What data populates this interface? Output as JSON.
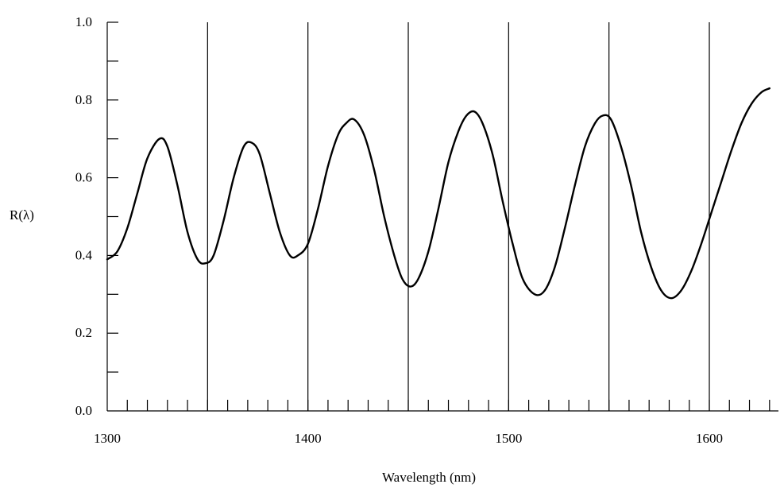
{
  "chart_data": {
    "type": "line",
    "xlabel": "Wavelength (nm)",
    "ylabel": "R(λ)",
    "xlim": [
      1300,
      1635
    ],
    "ylim": [
      0.0,
      1.0
    ],
    "x_ticks": [
      1300,
      1400,
      1500,
      1600
    ],
    "x_tick_labels": [
      "1300",
      "1400",
      "1500",
      "1600"
    ],
    "y_ticks": [
      0.0,
      0.2,
      0.4,
      0.6,
      0.8,
      1.0
    ],
    "y_tick_labels": [
      "0.0",
      "0.2",
      "0.4",
      "0.6",
      "0.8",
      "1.0"
    ],
    "vertical_lines_x": [
      1350,
      1400,
      1450,
      1500,
      1550,
      1600
    ],
    "grid": false,
    "series": [
      {
        "x": [
          1300,
          1305,
          1310,
          1315,
          1320,
          1326,
          1330,
          1335,
          1340,
          1345,
          1349,
          1353,
          1358,
          1363,
          1368,
          1372,
          1376,
          1381,
          1386,
          1391,
          1395,
          1400,
          1405,
          1410,
          1415,
          1419,
          1423,
          1428,
          1433,
          1438,
          1443,
          1447,
          1451,
          1455,
          1460,
          1465,
          1470,
          1475,
          1479,
          1483,
          1487,
          1492,
          1497,
          1502,
          1507,
          1513,
          1518,
          1523,
          1528,
          1533,
          1538,
          1543,
          1547,
          1551,
          1556,
          1561,
          1566,
          1571,
          1576,
          1581,
          1586,
          1591,
          1596,
          1601,
          1606,
          1611,
          1616,
          1621,
          1626,
          1630
        ],
        "y": [
          0.39,
          0.41,
          0.47,
          0.56,
          0.65,
          0.7,
          0.68,
          0.58,
          0.46,
          0.39,
          0.38,
          0.4,
          0.49,
          0.6,
          0.68,
          0.69,
          0.66,
          0.56,
          0.46,
          0.4,
          0.4,
          0.43,
          0.52,
          0.63,
          0.71,
          0.74,
          0.75,
          0.71,
          0.62,
          0.5,
          0.4,
          0.34,
          0.32,
          0.34,
          0.41,
          0.52,
          0.64,
          0.72,
          0.76,
          0.77,
          0.74,
          0.66,
          0.54,
          0.43,
          0.34,
          0.3,
          0.31,
          0.37,
          0.47,
          0.58,
          0.68,
          0.74,
          0.76,
          0.75,
          0.68,
          0.58,
          0.46,
          0.37,
          0.31,
          0.29,
          0.31,
          0.36,
          0.43,
          0.51,
          0.59,
          0.67,
          0.74,
          0.79,
          0.82,
          0.83
        ]
      }
    ]
  }
}
